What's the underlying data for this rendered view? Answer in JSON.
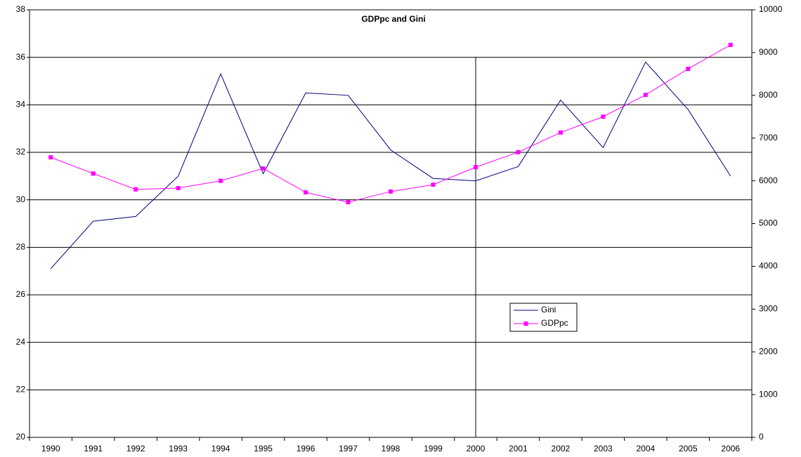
{
  "chart_data": {
    "type": "line",
    "title": "GDPpc and Gini",
    "categories": [
      "1990",
      "1991",
      "1992",
      "1993",
      "1994",
      "1995",
      "1996",
      "1997",
      "1998",
      "1999",
      "2000",
      "2001",
      "2002",
      "2003",
      "2004",
      "2005",
      "2006"
    ],
    "series": [
      {
        "name": "Gini",
        "color": "#000080",
        "values": [
          27.1,
          29.1,
          29.3,
          31.0,
          35.3,
          31.1,
          34.5,
          34.4,
          32.1,
          30.9,
          30.8,
          31.4,
          34.2,
          32.2,
          35.8,
          33.8,
          31.0
        ]
      },
      {
        "name": "GDPpc",
        "color": "#ff00ff",
        "axis": "y2",
        "marker": "square",
        "values": [
          6550,
          6170,
          5800,
          5830,
          6000,
          6290,
          5730,
          5500,
          5750,
          5910,
          6320,
          6670,
          7130,
          7500,
          8010,
          8620,
          9180
        ]
      }
    ],
    "ylim": [
      20,
      38
    ],
    "yticks": [
      20,
      22,
      24,
      26,
      28,
      30,
      32,
      34,
      36,
      38
    ],
    "y2lim": [
      0,
      10000
    ],
    "y2ticks": [
      0,
      1000,
      2000,
      3000,
      4000,
      5000,
      6000,
      7000,
      8000,
      9000,
      10000
    ],
    "grid": true
  }
}
